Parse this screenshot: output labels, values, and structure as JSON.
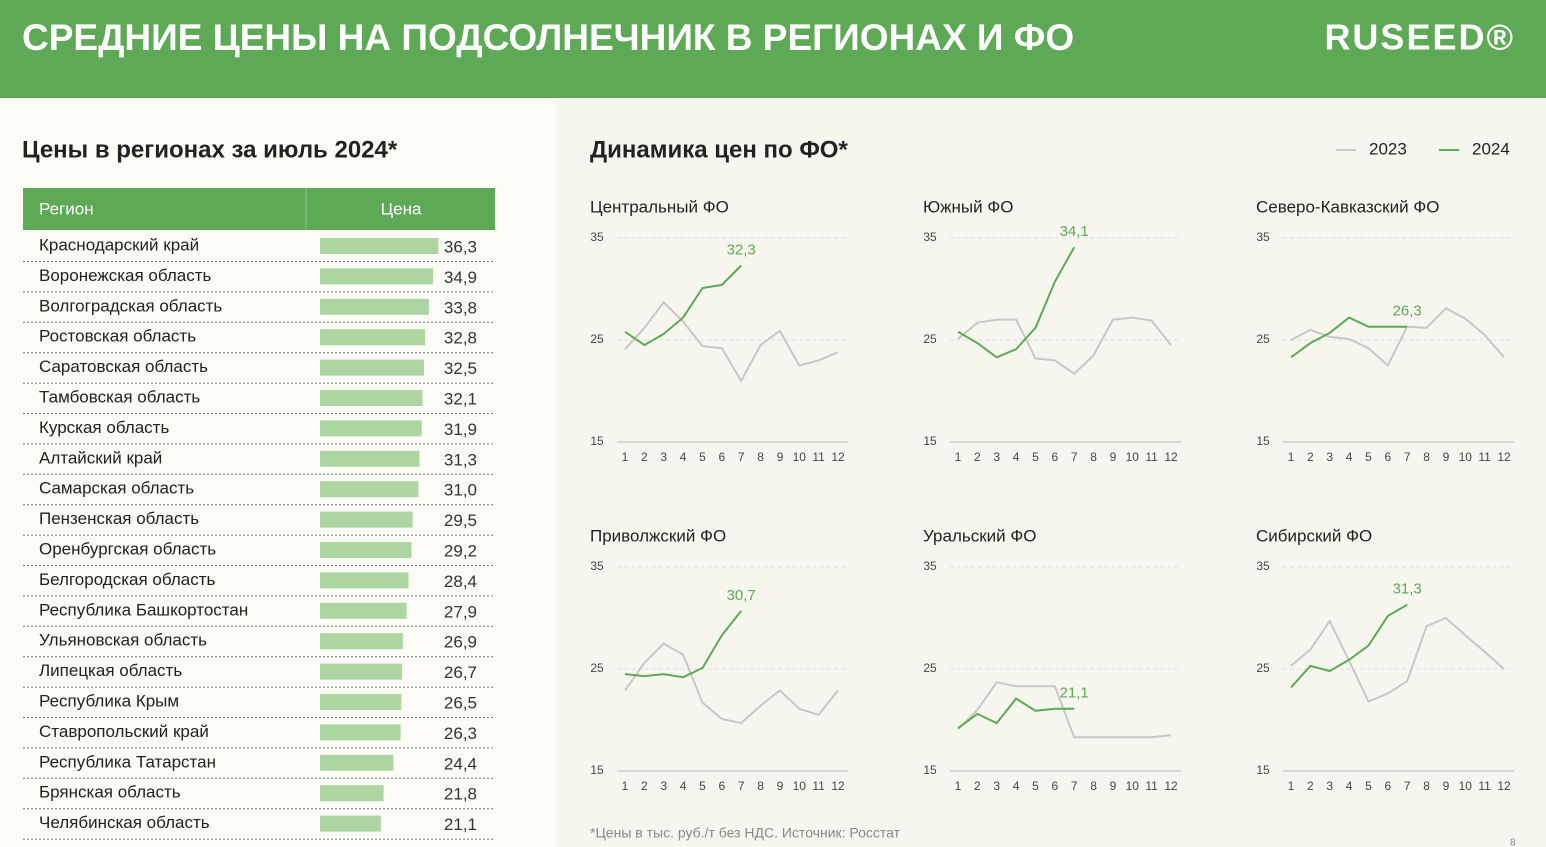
{
  "header": {
    "title": "СРЕДНИЕ ЦЕНЫ НА ПОДСОЛНЕЧНИК В РЕГИОНАХ И ФО",
    "logo": "RUSEED®"
  },
  "left_title": "Цены в регионах за июль 2024*",
  "right_title": "Динамика цен по ФО*",
  "legend": [
    {
      "name": "2023",
      "color": "#c8c8c2"
    },
    {
      "name": "2024",
      "color": "#5ea955"
    }
  ],
  "footnote": "*Цены в тыс. руб./т без НДС. Источник: Росстат",
  "page_number": "8",
  "chart_data": [
    {
      "type": "bar",
      "column_headers": [
        "Регион",
        "Цена"
      ],
      "color": "#acd5a1",
      "xlim": [
        5,
        37
      ],
      "categories": [
        "Краснодарский край",
        "Воронежская область",
        "Волгоградская область",
        "Ростовская область",
        "Саратовская область",
        "Тамбовская область",
        "Курская область",
        "Алтайский край",
        "Самарская область",
        "Пензенская область",
        "Оренбургская область",
        "Белгородская область",
        "Республика Башкортостан",
        "Ульяновская область",
        "Липецкая область",
        "Республика Крым",
        "Ставропольский край",
        "Республика Татарстан",
        "Брянская область",
        "Челябинская область"
      ],
      "values": [
        36.3,
        34.9,
        33.8,
        32.8,
        32.5,
        32.1,
        31.9,
        31.3,
        31.0,
        29.5,
        29.2,
        28.4,
        27.9,
        26.9,
        26.7,
        26.5,
        26.3,
        24.4,
        21.8,
        21.1
      ],
      "value_labels": [
        "36,3",
        "34,9",
        "33,8",
        "32,8",
        "32,5",
        "32,1",
        "31,9",
        "31,3",
        "31,0",
        "29,5",
        "29,2",
        "28,4",
        "27,9",
        "26,9",
        "26,7",
        "26,5",
        "26,3",
        "24,4",
        "21,8",
        "21,1"
      ]
    },
    {
      "type": "line",
      "title": "Центральный ФО",
      "x": [
        1,
        2,
        3,
        4,
        5,
        6,
        7,
        8,
        9,
        10,
        11,
        12
      ],
      "xlim": [
        1,
        12
      ],
      "xticks": [
        1,
        2,
        3,
        4,
        5,
        6,
        7,
        8,
        9,
        10,
        11,
        12
      ],
      "ylim": [
        15,
        35
      ],
      "yticks": [
        15,
        25,
        35
      ],
      "grid": true,
      "series": [
        {
          "values": [
            24.1,
            26.2,
            28.7,
            26.8,
            24.4,
            24.2,
            21.0,
            24.5,
            25.9,
            22.5,
            23.0,
            23.8
          ]
        },
        {
          "values": [
            25.8,
            24.5,
            25.6,
            27.2,
            30.1,
            30.4,
            32.3,
            null,
            null,
            null,
            null,
            null
          ],
          "value_labels": [
            null,
            null,
            null,
            null,
            null,
            null,
            "32,3",
            null,
            null,
            null,
            null,
            null
          ]
        }
      ]
    },
    {
      "type": "line",
      "title": "Южный ФО",
      "x": [
        1,
        2,
        3,
        4,
        5,
        6,
        7,
        8,
        9,
        10,
        11,
        12
      ],
      "xlim": [
        1,
        12
      ],
      "xticks": [
        1,
        2,
        3,
        4,
        5,
        6,
        7,
        8,
        9,
        10,
        11,
        12
      ],
      "ylim": [
        15,
        35
      ],
      "yticks": [
        15,
        25,
        35
      ],
      "grid": true,
      "series": [
        {
          "values": [
            25.1,
            26.7,
            27.0,
            27.0,
            23.2,
            23.0,
            21.7,
            23.5,
            27.0,
            27.2,
            26.9,
            24.5
          ]
        },
        {
          "values": [
            25.8,
            24.7,
            23.3,
            24.1,
            26.2,
            30.7,
            34.1,
            null,
            null,
            null,
            null,
            null
          ],
          "value_labels": [
            null,
            null,
            null,
            null,
            null,
            null,
            "34,1",
            null,
            null,
            null,
            null,
            null
          ]
        }
      ]
    },
    {
      "type": "line",
      "title": "Северо-Кавказский ФО",
      "x": [
        1,
        2,
        3,
        4,
        5,
        6,
        7,
        8,
        9,
        10,
        11,
        12
      ],
      "xlim": [
        1,
        12
      ],
      "xticks": [
        1,
        2,
        3,
        4,
        5,
        6,
        7,
        8,
        9,
        10,
        11,
        12
      ],
      "ylim": [
        15,
        35
      ],
      "yticks": [
        15,
        25,
        35
      ],
      "grid": true,
      "series": [
        {
          "values": [
            25.0,
            26.0,
            25.3,
            25.1,
            24.2,
            22.5,
            26.3,
            26.2,
            28.1,
            27.1,
            25.5,
            23.3
          ]
        },
        {
          "values": [
            23.3,
            24.7,
            25.7,
            27.2,
            26.3,
            26.3,
            26.3,
            null,
            null,
            null,
            null,
            null
          ],
          "value_labels": [
            null,
            null,
            null,
            null,
            null,
            null,
            "26,3",
            null,
            null,
            null,
            null,
            null
          ]
        }
      ]
    },
    {
      "type": "line",
      "title": "Приволжский ФО",
      "x": [
        1,
        2,
        3,
        4,
        5,
        6,
        7,
        8,
        9,
        10,
        11,
        12
      ],
      "xlim": [
        1,
        12
      ],
      "xticks": [
        1,
        2,
        3,
        4,
        5,
        6,
        7,
        8,
        9,
        10,
        11,
        12
      ],
      "ylim": [
        15,
        35
      ],
      "yticks": [
        15,
        25,
        35
      ],
      "grid": true,
      "series": [
        {
          "values": [
            22.9,
            25.6,
            27.5,
            26.4,
            21.7,
            20.1,
            19.7,
            21.4,
            22.9,
            21.1,
            20.5,
            22.9
          ]
        },
        {
          "values": [
            24.5,
            24.3,
            24.5,
            24.2,
            25.1,
            28.3,
            30.7,
            null,
            null,
            null,
            null,
            null
          ],
          "value_labels": [
            null,
            null,
            null,
            null,
            null,
            null,
            "30,7",
            null,
            null,
            null,
            null,
            null
          ]
        }
      ]
    },
    {
      "type": "line",
      "title": "Уральский ФО",
      "x": [
        1,
        2,
        3,
        4,
        5,
        6,
        7,
        8,
        9,
        10,
        11,
        12
      ],
      "xlim": [
        1,
        12
      ],
      "xticks": [
        1,
        2,
        3,
        4,
        5,
        6,
        7,
        8,
        9,
        10,
        11,
        12
      ],
      "ylim": [
        15,
        35
      ],
      "yticks": [
        15,
        25,
        35
      ],
      "grid": true,
      "series": [
        {
          "values": [
            19.1,
            21.0,
            23.7,
            23.3,
            23.3,
            23.3,
            18.3,
            18.3,
            18.3,
            18.3,
            18.3,
            18.5
          ]
        },
        {
          "values": [
            19.2,
            20.6,
            19.7,
            22.1,
            20.9,
            21.1,
            21.1,
            null,
            null,
            null,
            null,
            null
          ],
          "value_labels": [
            null,
            null,
            null,
            null,
            null,
            null,
            "21,1",
            null,
            null,
            null,
            null,
            null
          ]
        }
      ]
    },
    {
      "type": "line",
      "title": "Сибирский ФО",
      "x": [
        1,
        2,
        3,
        4,
        5,
        6,
        7,
        8,
        9,
        10,
        11,
        12
      ],
      "xlim": [
        1,
        12
      ],
      "xticks": [
        1,
        2,
        3,
        4,
        5,
        6,
        7,
        8,
        9,
        10,
        11,
        12
      ],
      "ylim": [
        15,
        35
      ],
      "yticks": [
        15,
        25,
        35
      ],
      "grid": true,
      "series": [
        {
          "values": [
            25.3,
            26.9,
            29.7,
            25.8,
            21.8,
            22.6,
            23.8,
            29.2,
            30.0,
            28.3,
            26.7,
            25.0
          ]
        },
        {
          "values": [
            23.2,
            25.3,
            24.8,
            25.9,
            27.3,
            30.2,
            31.3,
            null,
            null,
            null,
            null,
            null
          ],
          "value_labels": [
            null,
            null,
            null,
            null,
            null,
            null,
            "31,3",
            null,
            null,
            null,
            null,
            null
          ]
        }
      ]
    }
  ]
}
